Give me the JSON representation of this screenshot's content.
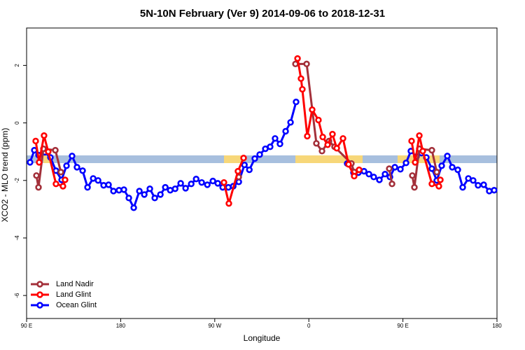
{
  "chart_data": {
    "type": "line",
    "title": "5N-10N February (Ver 9)   2014-09-06 to 2018-12-31",
    "xlabel": "Longitude",
    "ylabel": "XCO2 - MLO trend (ppm)",
    "xlim": [
      90,
      540
    ],
    "ylim": [
      -6.8,
      3.3
    ],
    "xticks": [
      {
        "value": 90,
        "label": "90 E"
      },
      180,
      {
        "value": 270,
        "label": "90 W"
      },
      {
        "value": 360,
        "label": "0"
      },
      {
        "value": 450,
        "label": "90 E"
      },
      {
        "value": 540,
        "label": "180"
      }
    ],
    "yticks": [
      -6,
      -4,
      -2,
      0,
      2
    ],
    "legend": "bottom-left",
    "series": [
      {
        "name": "Land Nadir",
        "color": "#a3303a",
        "x": [
          99.4,
          101.4,
          106.1,
          117.5,
          122.8,
          null,
          292.9,
          null,
          347.2,
          357.9,
          367.2,
          372.6,
          379.3,
          384.6,
          400.7,
          403.4,
          null,
          436.9,
          439.6,
          null,
          459,
          461,
          465.7,
          477.7,
          482.4
        ],
        "values": [
          -1.83,
          -2.24,
          -0.9,
          -0.95,
          -1.71,
          null,
          -1.88,
          null,
          2.05,
          2.05,
          -0.71,
          -0.98,
          -0.63,
          -0.83,
          -1.41,
          -1.71,
          null,
          -1.59,
          -2.12,
          null,
          -1.83,
          -2.24,
          -0.9,
          -0.95,
          -1.71
        ]
      },
      {
        "name": "Land Glint",
        "color": "#ff0000",
        "x": [
          98.7,
          102,
          106.7,
          110.7,
          118.1,
          124.8,
          126.8,
          null,
          278.8,
          283.5,
          292.2,
          297.6,
          null,
          349.2,
          352.5,
          353.8,
          358.5,
          363.2,
          369.2,
          373.3,
          378,
          382.6,
          386.7,
          392.7,
          398,
          403.4,
          408.1,
          null,
          458.3,
          461.7,
          465.7,
          469,
          477.7,
          484.4,
          485.8
        ],
        "values": [
          -0.63,
          -1.37,
          -0.44,
          -1.0,
          -2.12,
          -2.2,
          -1.98,
          null,
          -2.07,
          -2.8,
          -1.68,
          -1.22,
          null,
          2.24,
          1.54,
          1.17,
          -0.46,
          0.46,
          0.1,
          -0.49,
          -0.76,
          -0.39,
          -0.88,
          -0.54,
          -1.44,
          -1.85,
          -1.63,
          null,
          -0.63,
          -1.37,
          -0.44,
          -0.98,
          -2.12,
          -2.2,
          -1.98
        ]
      },
      {
        "name": "Ocean Glint",
        "color": "#0000ff",
        "x": [
          93.3,
          97.4,
          101.4,
          107.4,
          112.8,
          118.1,
          123.5,
          128.2,
          133.5,
          138.2,
          143.6,
          148.3,
          153.7,
          158.4,
          163.7,
          168.4,
          173.1,
          178.4,
          183.1,
          187.8,
          192.5,
          197.9,
          202.6,
          207.9,
          212.6,
          218,
          222.7,
          227.4,
          232.1,
          237.4,
          242.1,
          247.5,
          252.2,
          257.5,
          262.9,
          268.2,
          272.9,
          277.6,
          283,
          287.7,
          293,
          298.4,
          303.1,
          308.3,
          313,
          318.4,
          323,
          327.7,
          332.4,
          337.8,
          342.5,
          347.8,
          null,
          396.7,
          402.7,
          407.4,
          412.8,
          417.5,
          422.1,
          427.5,
          432.9,
          437.6,
          442.3,
          447.6,
          453,
          457.6,
          463,
          467.7,
          472.4,
          477.7,
          482.4,
          487.1,
          492.5,
          497.2,
          502.5,
          507.2,
          512.6,
          517.2,
          521.9,
          527.3,
          532.6,
          537.3
        ],
        "values": [
          -1.37,
          -0.95,
          -1.12,
          -1.02,
          -1.2,
          -1.66,
          -1.98,
          -1.49,
          -1.15,
          -1.54,
          -1.66,
          -2.24,
          -1.93,
          -2.0,
          -2.17,
          -2.15,
          -2.37,
          -2.34,
          -2.32,
          -2.61,
          -2.95,
          -2.37,
          -2.49,
          -2.29,
          -2.61,
          -2.49,
          -2.24,
          -2.34,
          -2.29,
          -2.1,
          -2.27,
          -2.12,
          -1.95,
          -2.07,
          -2.15,
          -2.02,
          -2.1,
          -2.24,
          -2.24,
          -2.2,
          -2.05,
          -1.46,
          -1.63,
          -1.24,
          -1.1,
          -0.9,
          -0.83,
          -0.54,
          -0.73,
          -0.29,
          0.02,
          0.73,
          null,
          -1.41,
          -1.73,
          -1.73,
          -1.68,
          -1.78,
          -1.88,
          -1.98,
          -1.78,
          -1.88,
          -1.54,
          -1.61,
          -1.39,
          -0.98,
          -1.17,
          -1.05,
          -1.2,
          -1.59,
          -2.0,
          -1.49,
          -1.15,
          -1.54,
          -1.63,
          -2.24,
          -1.93,
          -2.0,
          -2.17,
          -2.15,
          -2.37,
          -2.34
        ]
      }
    ]
  }
}
